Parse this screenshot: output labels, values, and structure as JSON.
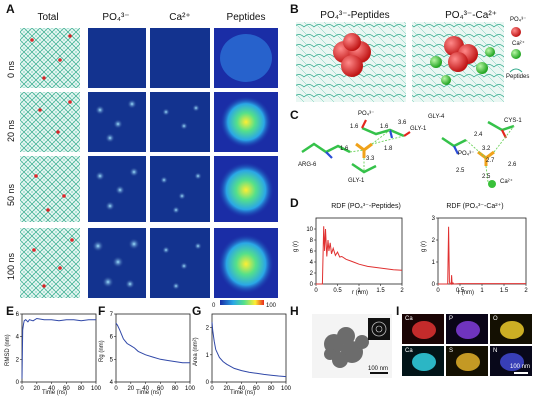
{
  "panels": {
    "A": "A",
    "B": "B",
    "C": "C",
    "D": "D",
    "E": "E",
    "F": "F",
    "G": "G",
    "H": "H",
    "I": "I"
  },
  "panelA": {
    "headers": [
      "Total",
      "PO₄³⁻",
      "Ca²⁺",
      "Peptides"
    ],
    "rows": [
      "0 ns",
      "20 ns",
      "50 ns",
      "100 ns"
    ],
    "colorbar": {
      "min": "0",
      "max": "100"
    }
  },
  "panelB": {
    "titles": [
      "PO₄³⁻-Peptides",
      "PO₄³⁻-Ca²⁺"
    ],
    "legend": [
      "PO₄³⁻",
      "Ca²⁺",
      "Peptides"
    ]
  },
  "panelC": {
    "left": {
      "labels": [
        "PO₄³⁻",
        "GLY-1",
        "ARG-6",
        "GLY-1"
      ],
      "distances": [
        "1.6",
        "1.6",
        "3.6",
        "1.8",
        "1.6",
        "3.3"
      ]
    },
    "right": {
      "labels": [
        "GLY-4",
        "CYS-1",
        "PO₄³⁻",
        "Ca²⁺"
      ],
      "distances": [
        "2.4",
        "3.2",
        "2.7",
        "2.5",
        "2.5",
        "2.6"
      ]
    }
  },
  "panelD": {
    "left_title": "RDF (PO₄³⁻-Peptides)",
    "right_title": "RDF (PO₄³⁻-Ca²⁺)",
    "ylabel": "g (r)",
    "xlabel": "r (nm)"
  },
  "panelE": {
    "ylabel": "RMSD (nm)",
    "xlabel": "Time (ns)"
  },
  "panelF": {
    "ylabel": "Rg (nm)",
    "xlabel": "Time (ns)"
  },
  "panelG": {
    "ylabel": "Area (nm²)",
    "xlabel": "Time (ns)"
  },
  "panelH": {
    "scale": "100 nm"
  },
  "panelI": {
    "channels": [
      "Ca",
      "P",
      "O",
      "Ca",
      "S",
      "N"
    ],
    "scale": "100 nm"
  },
  "chart_data": [
    {
      "type": "line",
      "id": "D-left",
      "title": "RDF (PO₄³⁻-Peptides)",
      "xlabel": "r (nm)",
      "ylabel": "g (r)",
      "xlim": [
        0,
        2
      ],
      "ylim": [
        0,
        12
      ],
      "xticks": [
        0,
        0.5,
        1,
        1.5,
        2
      ],
      "yticks": [
        0,
        2,
        4,
        6,
        8,
        10
      ],
      "x": [
        0.0,
        0.15,
        0.18,
        0.2,
        0.22,
        0.25,
        0.28,
        0.3,
        0.33,
        0.36,
        0.4,
        0.45,
        0.5,
        0.55,
        0.6,
        0.7,
        0.8,
        0.9,
        1.0,
        1.2,
        1.4,
        1.6,
        1.8,
        2.0
      ],
      "y": [
        0,
        0,
        10.5,
        6.0,
        10.0,
        5.0,
        8.0,
        6.0,
        7.5,
        5.5,
        6.5,
        5.2,
        5.8,
        4.9,
        5.0,
        4.5,
        4.2,
        3.9,
        3.6,
        3.2,
        3.0,
        2.8,
        2.6,
        2.5
      ],
      "color": "#e03030"
    },
    {
      "type": "line",
      "id": "D-right",
      "title": "RDF (PO₄³⁻-Ca²⁺)",
      "xlabel": "r (nm)",
      "ylabel": "g (r)",
      "xlim": [
        0,
        2
      ],
      "ylim": [
        0,
        3
      ],
      "xticks": [
        0,
        0.5,
        1,
        1.5,
        2
      ],
      "yticks": [
        0,
        1,
        2,
        3
      ],
      "x": [
        0.0,
        0.22,
        0.24,
        0.26,
        0.28,
        0.3,
        0.31,
        0.32,
        0.34,
        0.36,
        0.5,
        1.0,
        1.5,
        2.0
      ],
      "y": [
        0,
        0,
        2.6,
        0.1,
        0,
        0,
        0.4,
        0,
        0.05,
        0,
        0.02,
        0.02,
        0.02,
        0.02
      ],
      "color": "#e03030"
    },
    {
      "type": "line",
      "id": "E",
      "xlabel": "Time (ns)",
      "ylabel": "RMSD (nm)",
      "xlim": [
        0,
        100
      ],
      "ylim": [
        0,
        6
      ],
      "xticks": [
        0,
        20,
        40,
        60,
        80,
        100
      ],
      "yticks": [
        0,
        2,
        4,
        6
      ],
      "x": [
        0,
        1,
        2,
        3,
        5,
        8,
        10,
        15,
        20,
        30,
        40,
        50,
        60,
        70,
        80,
        90,
        100
      ],
      "y": [
        0.3,
        4.6,
        5.1,
        5.4,
        5.5,
        5.3,
        5.5,
        5.4,
        5.6,
        5.5,
        5.5,
        5.4,
        5.5,
        5.5,
        5.4,
        5.5,
        5.5
      ],
      "color": "#3048a8"
    },
    {
      "type": "line",
      "id": "F",
      "xlabel": "Time (ns)",
      "ylabel": "Rg (nm)",
      "xlim": [
        0,
        100
      ],
      "ylim": [
        4,
        7
      ],
      "xticks": [
        0,
        20,
        40,
        60,
        80,
        100
      ],
      "yticks": [
        4,
        5,
        6,
        7
      ],
      "x": [
        0,
        2,
        5,
        10,
        15,
        20,
        25,
        30,
        40,
        50,
        60,
        70,
        80,
        90,
        100
      ],
      "y": [
        6.6,
        6.5,
        6.3,
        5.9,
        5.7,
        5.6,
        5.5,
        5.35,
        5.2,
        5.1,
        5.0,
        4.95,
        4.9,
        4.85,
        4.85
      ],
      "color": "#3048a8"
    },
    {
      "type": "line",
      "id": "G",
      "xlabel": "Time (ns)",
      "ylabel": "Area (nm²)",
      "xlim": [
        0,
        100
      ],
      "ylim": [
        0,
        2.5
      ],
      "xticks": [
        0,
        20,
        40,
        60,
        80,
        100
      ],
      "yticks": [
        0,
        1,
        2
      ],
      "x": [
        0,
        1,
        3,
        5,
        10,
        15,
        20,
        30,
        40,
        50,
        60,
        70,
        80,
        90,
        100
      ],
      "y": [
        2.2,
        1.9,
        1.5,
        1.2,
        0.9,
        0.75,
        0.65,
        0.5,
        0.42,
        0.36,
        0.32,
        0.28,
        0.25,
        0.22,
        0.2
      ],
      "color": "#3048a8"
    }
  ]
}
